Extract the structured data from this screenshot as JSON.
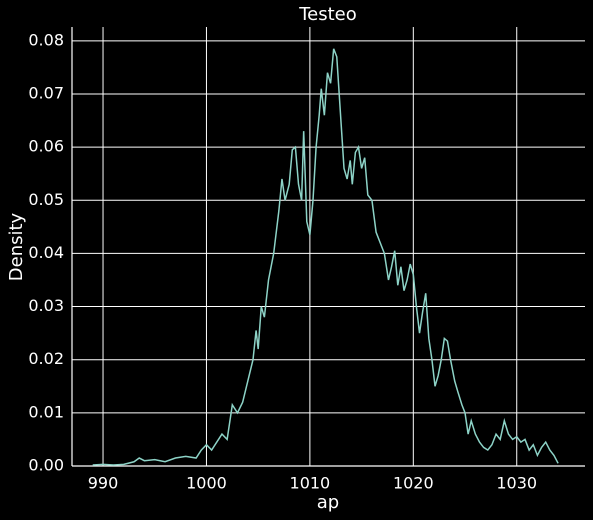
{
  "chart_data": {
    "type": "line",
    "title": "Testeo",
    "xlabel": "ap",
    "ylabel": "Density",
    "x": [
      989,
      990,
      991,
      992,
      993,
      993.5,
      994,
      995,
      996,
      997,
      998,
      999,
      999.5,
      1000,
      1000.5,
      1001,
      1001.5,
      1002,
      1002.5,
      1003,
      1003.5,
      1004,
      1004.5,
      1004.8,
      1005,
      1005.3,
      1005.6,
      1006,
      1006.5,
      1007,
      1007.3,
      1007.6,
      1008,
      1008.3,
      1008.6,
      1008.9,
      1009.2,
      1009.4,
      1009.7,
      1010,
      1010.3,
      1010.6,
      1010.9,
      1011.1,
      1011.4,
      1011.7,
      1012,
      1012.3,
      1012.6,
      1012.9,
      1013.3,
      1013.6,
      1013.9,
      1014.1,
      1014.4,
      1014.7,
      1015,
      1015.3,
      1015.6,
      1016,
      1016.4,
      1016.8,
      1017.2,
      1017.6,
      1017.9,
      1018.2,
      1018.5,
      1018.8,
      1019.1,
      1019.4,
      1019.7,
      1020,
      1020.3,
      1020.6,
      1020.9,
      1021.2,
      1021.5,
      1021.8,
      1022.1,
      1022.4,
      1022.7,
      1023,
      1023.3,
      1023.6,
      1024,
      1024.3,
      1024.7,
      1025,
      1025.3,
      1025.6,
      1026,
      1026.4,
      1026.8,
      1027.2,
      1027.6,
      1028,
      1028.4,
      1028.8,
      1029.2,
      1029.6,
      1030,
      1030.4,
      1030.8,
      1031.2,
      1031.6,
      1032,
      1032.4,
      1032.8,
      1033.2,
      1033.6,
      1034
    ],
    "values": [
      0.0002,
      0.0003,
      0.0002,
      0.0003,
      0.0008,
      0.0015,
      0.001,
      0.0012,
      0.0008,
      0.0015,
      0.0018,
      0.0015,
      0.003,
      0.004,
      0.003,
      0.0045,
      0.006,
      0.005,
      0.0115,
      0.01,
      0.012,
      0.016,
      0.02,
      0.0255,
      0.022,
      0.03,
      0.028,
      0.035,
      0.04,
      0.048,
      0.054,
      0.05,
      0.053,
      0.0595,
      0.06,
      0.053,
      0.05,
      0.063,
      0.046,
      0.0435,
      0.05,
      0.06,
      0.066,
      0.071,
      0.066,
      0.074,
      0.072,
      0.0785,
      0.077,
      0.068,
      0.056,
      0.054,
      0.0575,
      0.053,
      0.059,
      0.06,
      0.056,
      0.058,
      0.051,
      0.05,
      0.044,
      0.042,
      0.04,
      0.035,
      0.0375,
      0.0405,
      0.034,
      0.0375,
      0.033,
      0.035,
      0.038,
      0.036,
      0.03,
      0.025,
      0.029,
      0.0325,
      0.024,
      0.02,
      0.015,
      0.017,
      0.02,
      0.024,
      0.0235,
      0.02,
      0.016,
      0.014,
      0.0115,
      0.01,
      0.006,
      0.0085,
      0.006,
      0.0045,
      0.0035,
      0.003,
      0.004,
      0.006,
      0.005,
      0.0085,
      0.006,
      0.005,
      0.0055,
      0.0045,
      0.005,
      0.003,
      0.004,
      0.002,
      0.0035,
      0.0045,
      0.003,
      0.002,
      0.0005
    ],
    "color": "#8dd3c7",
    "xlim": [
      987,
      1036.6
    ],
    "xticks": [
      990,
      1000,
      1010,
      1020,
      1030
    ],
    "ylim": [
      0,
      0.0826
    ],
    "yticks": [
      {
        "value": 0,
        "label": "0.00"
      },
      0.01,
      0.02,
      0.03,
      0.04,
      0.05,
      0.06,
      0.07,
      0.08
    ],
    "grid": true
  }
}
